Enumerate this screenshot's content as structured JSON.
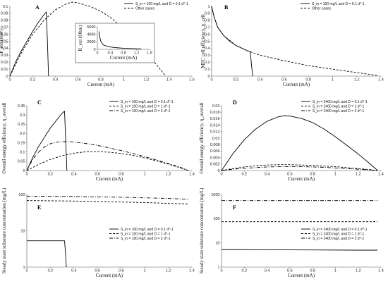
{
  "chart_data": [
    {
      "id": "A",
      "type": "line",
      "panel_label": "A",
      "xlabel": "Current (mA)",
      "ylabel": "P_ext (mW)",
      "xlim": [
        0,
        1.6
      ],
      "ylim": [
        0,
        0.1
      ],
      "log_y": false,
      "xticks": [
        0,
        0.2,
        0.4,
        0.6,
        0.8,
        1,
        1.2,
        1.4,
        1.6
      ],
      "xtick_labels": [
        "0",
        "0.2",
        "0.4",
        "0.6",
        "0.8",
        "1",
        "1.2",
        "1.4",
        "1.6"
      ],
      "yticks": [
        0,
        0.01,
        0.02,
        0.03,
        0.04,
        0.05,
        0.06,
        0.07,
        0.08,
        0.09,
        0.1
      ],
      "ytick_labels": [
        "0",
        "0.01",
        "0.02",
        "0.03",
        "0.04",
        "0.05",
        "0.06",
        "0.07",
        "0.08",
        "0.09",
        "0.1"
      ],
      "legend_position": "top-right",
      "series": [
        {
          "name": "S_in = 100 mg/L and D = 0.1 d^-1",
          "style": "solid",
          "x": [
            0,
            0.05,
            0.1,
            0.15,
            0.2,
            0.25,
            0.3,
            0.32,
            0.33,
            0.34
          ],
          "y": [
            0,
            0.02,
            0.036,
            0.05,
            0.064,
            0.077,
            0.088,
            0.092,
            0.05,
            0
          ]
        },
        {
          "name": "Other cases",
          "style": "dashed",
          "x": [
            0,
            0.1,
            0.2,
            0.3,
            0.4,
            0.5,
            0.55,
            0.6,
            0.7,
            0.8,
            0.9,
            1.0,
            1.1,
            1.2,
            1.3,
            1.37
          ],
          "y": [
            0,
            0.033,
            0.06,
            0.08,
            0.095,
            0.104,
            0.106,
            0.105,
            0.1,
            0.093,
            0.082,
            0.068,
            0.051,
            0.034,
            0.014,
            0
          ]
        }
      ],
      "inset": {
        "type": "line",
        "xlabel": "Current (mA)",
        "ylabel": "R_ext (Ohm)",
        "xlim": [
          0,
          1.6
        ],
        "ylim": [
          0,
          6000
        ],
        "xticks": [
          0,
          0.4,
          0.8,
          1.2,
          1.6
        ],
        "xtick_labels": [
          "0",
          "0.4",
          "0.8",
          "1.2",
          "1.6"
        ],
        "yticks": [
          0,
          2000,
          4000,
          6000
        ],
        "ytick_labels": [
          "0",
          "2000",
          "4000",
          "6000"
        ],
        "series": [
          {
            "x": [
              0.05,
              0.07,
              0.1,
              0.15,
              0.2,
              0.3,
              0.4,
              0.6,
              0.8,
              1.0,
              1.2,
              1.35
            ],
            "y": [
              4800,
              3400,
              2300,
              1500,
              1100,
              800,
              620,
              420,
              300,
              220,
              160,
              110
            ]
          }
        ]
      }
    },
    {
      "id": "B",
      "type": "line",
      "panel_label": "B",
      "xlabel": "Current (mA)",
      "ylabel": "MFC cell efficiency, η_cell",
      "xlim": [
        0,
        1.4
      ],
      "ylim": [
        0,
        1
      ],
      "log_y": false,
      "xticks": [
        0,
        0.2,
        0.4,
        0.6,
        0.8,
        1,
        1.2,
        1.4
      ],
      "xtick_labels": [
        "0",
        "0.2",
        "0.4",
        "0.6",
        "0.8",
        "1",
        "1.2",
        "1.4"
      ],
      "yticks": [
        0,
        0.1,
        0.2,
        0.3,
        0.4,
        0.5,
        0.6,
        0.7,
        0.8,
        0.9,
        1
      ],
      "ytick_labels": [
        "0",
        "0.1",
        "0.2",
        "0.3",
        "0.4",
        "0.5",
        "0.6",
        "0.7",
        "0.8",
        "0.9",
        "1"
      ],
      "legend_position": "top-right",
      "series": [
        {
          "name": "S_in = 100 mg/L and D = 0.1 d^-1",
          "style": "solid",
          "x": [
            0,
            0.02,
            0.05,
            0.1,
            0.15,
            0.2,
            0.25,
            0.3,
            0.32,
            0.33,
            0.34
          ],
          "y": [
            1.0,
            0.85,
            0.7,
            0.58,
            0.5,
            0.44,
            0.4,
            0.36,
            0.35,
            0.15,
            0
          ]
        },
        {
          "name": "Other cases",
          "style": "dashed",
          "x": [
            0,
            0.02,
            0.05,
            0.1,
            0.2,
            0.3,
            0.4,
            0.6,
            0.8,
            1.0,
            1.2,
            1.37
          ],
          "y": [
            1.0,
            0.85,
            0.7,
            0.58,
            0.44,
            0.36,
            0.3,
            0.22,
            0.15,
            0.1,
            0.05,
            0.01
          ]
        }
      ]
    },
    {
      "id": "C",
      "type": "line",
      "panel_label": "C",
      "xlabel": "Current (mA)",
      "ylabel": "Overall energy efficiency, η_overall",
      "xlim": [
        0,
        1.4
      ],
      "ylim": [
        0,
        0.35
      ],
      "log_y": false,
      "xticks": [
        0,
        0.2,
        0.4,
        0.6,
        0.8,
        1,
        1.2,
        1.4
      ],
      "xtick_labels": [
        "0",
        "0.2",
        "0.4",
        "0.6",
        "0.8",
        "1",
        "1.2",
        "1.4"
      ],
      "yticks": [
        0,
        0.05,
        0.1,
        0.15,
        0.2,
        0.25,
        0.3,
        0.35
      ],
      "ytick_labels": [
        "0",
        "0.05",
        "0.1",
        "0.15",
        "0.2",
        "0.25",
        "0.3",
        "0.35"
      ],
      "legend_position": "top-right",
      "series": [
        {
          "name": "S_in = 100 mg/L and D = 0.1 d^-1",
          "style": "solid",
          "x": [
            0,
            0.05,
            0.1,
            0.15,
            0.2,
            0.25,
            0.3,
            0.32,
            0.33,
            0.34
          ],
          "y": [
            0,
            0.07,
            0.13,
            0.18,
            0.23,
            0.27,
            0.31,
            0.32,
            0.16,
            0
          ]
        },
        {
          "name": "S_in = 100 mg/L and D = 1 d^-1",
          "style": "dashed",
          "x": [
            0,
            0.1,
            0.2,
            0.3,
            0.4,
            0.5,
            0.6,
            0.7,
            0.8,
            0.9,
            1.0,
            1.1,
            1.2,
            1.3,
            1.37
          ],
          "y": [
            0,
            0.033,
            0.06,
            0.08,
            0.094,
            0.101,
            0.102,
            0.099,
            0.092,
            0.082,
            0.068,
            0.052,
            0.035,
            0.015,
            0
          ]
        },
        {
          "name": "S_in = 100 mg/L and D = 2 d^-1",
          "style": "dashdot",
          "x": [
            0,
            0.05,
            0.1,
            0.15,
            0.2,
            0.25,
            0.3,
            0.35,
            0.4,
            0.5,
            0.6,
            0.7,
            0.8,
            0.9,
            1.0,
            1.1,
            1.2,
            1.3,
            1.37
          ],
          "y": [
            0,
            0.06,
            0.1,
            0.128,
            0.145,
            0.153,
            0.156,
            0.156,
            0.154,
            0.146,
            0.136,
            0.122,
            0.108,
            0.092,
            0.075,
            0.057,
            0.038,
            0.018,
            0
          ]
        }
      ]
    },
    {
      "id": "D",
      "type": "line",
      "panel_label": "D",
      "xlabel": "Current (mA)",
      "ylabel": "Overall energy efficiency, η_overall",
      "xlim": [
        0,
        1.4
      ],
      "ylim": [
        0,
        0.02
      ],
      "log_y": false,
      "xticks": [
        0,
        0.2,
        0.4,
        0.6,
        0.8,
        1,
        1.2,
        1.4
      ],
      "xtick_labels": [
        "0",
        "0.2",
        "0.4",
        "0.6",
        "0.8",
        "1",
        "1.2",
        "1.4"
      ],
      "yticks": [
        0,
        0.002,
        0.004,
        0.006,
        0.008,
        0.01,
        0.012,
        0.014,
        0.016,
        0.018,
        0.02
      ],
      "ytick_labels": [
        "0",
        "0.002",
        "0.004",
        "0.006",
        "0.008",
        "0.01",
        "0.012",
        "0.014",
        "0.016",
        "0.018",
        "0.02"
      ],
      "legend_position": "top-right",
      "series": [
        {
          "name": "S_in = 2400 mg/L and D = 0.1 d^-1",
          "style": "solid",
          "x": [
            0,
            0.1,
            0.2,
            0.3,
            0.4,
            0.5,
            0.55,
            0.6,
            0.7,
            0.8,
            0.9,
            1.0,
            1.1,
            1.2,
            1.3,
            1.37
          ],
          "y": [
            0,
            0.0052,
            0.0095,
            0.0128,
            0.0152,
            0.0166,
            0.0169,
            0.0168,
            0.0161,
            0.0148,
            0.0128,
            0.0104,
            0.0078,
            0.0051,
            0.0022,
            0
          ]
        },
        {
          "name": "S_in = 2400 mg/L and D = 1 d^-1",
          "style": "dashed",
          "x": [
            0,
            0.1,
            0.2,
            0.3,
            0.4,
            0.5,
            0.6,
            0.7,
            0.8,
            0.9,
            1.0,
            1.1,
            1.2,
            1.3,
            1.37
          ],
          "y": [
            0,
            0.0006,
            0.0011,
            0.0015,
            0.0017,
            0.0018,
            0.0018,
            0.0017,
            0.0016,
            0.0014,
            0.0012,
            0.0009,
            0.0006,
            0.0003,
            0
          ]
        },
        {
          "name": "S_in = 2400 mg/L and D = 2 d^-1",
          "style": "dashdot",
          "x": [
            0,
            0.1,
            0.2,
            0.3,
            0.4,
            0.5,
            0.6,
            0.7,
            0.8,
            0.9,
            1.0,
            1.1,
            1.2,
            1.3,
            1.37
          ],
          "y": [
            0,
            0.0004,
            0.0007,
            0.0009,
            0.0011,
            0.0012,
            0.0012,
            0.0012,
            0.0011,
            0.001,
            0.0008,
            0.0006,
            0.0004,
            0.0002,
            0
          ]
        }
      ]
    },
    {
      "id": "E",
      "type": "line",
      "panel_label": "E",
      "xlabel": "Current (mA)",
      "ylabel": "Steady state substrate concentration (mg/L)",
      "xlim": [
        0,
        1.4
      ],
      "ylim": [
        1,
        100
      ],
      "log_y": true,
      "xticks": [
        0,
        0.2,
        0.4,
        0.6,
        0.8,
        1,
        1.2,
        1.4
      ],
      "xtick_labels": [
        "0",
        "0.2",
        "0.4",
        "0.6",
        "0.8",
        "1",
        "1.2",
        "1.4"
      ],
      "yticks": [
        1,
        10,
        100
      ],
      "ytick_labels": [
        "1",
        "10",
        "100"
      ],
      "legend_position": "bottom-right",
      "series": [
        {
          "name": "S_in = 100 mg/L and D = 0.1 d^-1",
          "style": "solid",
          "x": [
            0,
            0.1,
            0.2,
            0.3,
            0.32,
            0.33,
            0.335
          ],
          "y": [
            5.3,
            5.3,
            5.3,
            5.3,
            5.3,
            2,
            1
          ]
        },
        {
          "name": "S_in = 100 mg/L and D = 1 d^-1",
          "style": "dashed",
          "x": [
            0,
            0.2,
            0.4,
            0.6,
            0.8,
            1.0,
            1.2,
            1.37
          ],
          "y": [
            68,
            67,
            66,
            64,
            62,
            60,
            57,
            55
          ]
        },
        {
          "name": "S_in = 100 mg/L and D = 2 d^-1",
          "style": "dashdot",
          "x": [
            0,
            0.2,
            0.4,
            0.6,
            0.8,
            1.0,
            1.2,
            1.37
          ],
          "y": [
            90,
            89,
            88,
            86,
            84,
            81,
            78,
            74
          ]
        }
      ]
    },
    {
      "id": "F",
      "type": "line",
      "panel_label": "F",
      "xlabel": "Current (mA)",
      "ylabel": "Steady state substrate concentration (mg/L)",
      "xlim": [
        0,
        1.4
      ],
      "ylim": [
        1,
        1000
      ],
      "log_y": true,
      "xticks": [
        0,
        0.2,
        0.4,
        0.6,
        0.8,
        1,
        1.2,
        1.4
      ],
      "xtick_labels": [
        "0",
        "0.2",
        "0.4",
        "0.6",
        "0.8",
        "1",
        "1.2",
        "1.4"
      ],
      "yticks": [
        1,
        10,
        100,
        1000
      ],
      "ytick_labels": [
        "1",
        "10",
        "100",
        "1000"
      ],
      "legend_position": "bottom-right",
      "series": [
        {
          "name": "S_in = 2400 mg/L and D = 0.1 d^-1",
          "style": "solid",
          "x": [
            0,
            0.4,
            0.8,
            1.2,
            1.37
          ],
          "y": [
            5.3,
            5.2,
            5.1,
            5.0,
            5.0
          ]
        },
        {
          "name": "S_in = 2400 mg/L and D = 1 d^-1",
          "style": "dashed",
          "x": [
            0,
            0.4,
            0.8,
            1.2,
            1.37
          ],
          "y": [
            75,
            75,
            75,
            75,
            75
          ]
        },
        {
          "name": "S_in = 2400 mg/L and D = 2 d^-1",
          "style": "dashdot",
          "x": [
            0,
            0.4,
            0.8,
            1.2,
            1.37
          ],
          "y": [
            560,
            560,
            560,
            560,
            560
          ]
        }
      ]
    }
  ]
}
